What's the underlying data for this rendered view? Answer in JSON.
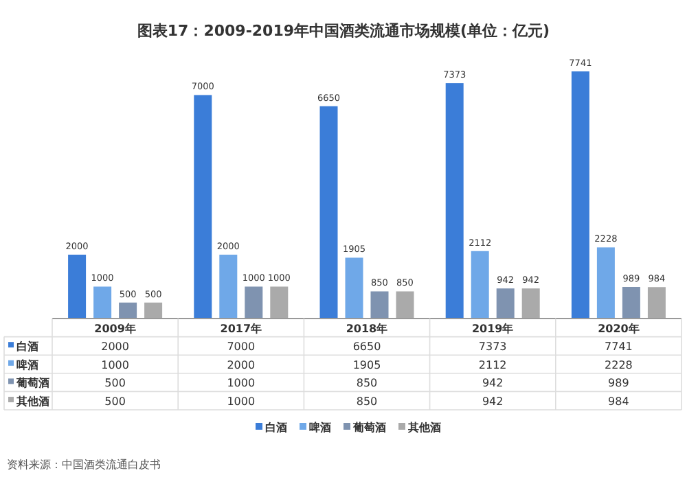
{
  "chart_data": [
    {
      "type": "bar",
      "title": "图表17：2009-2019年中国酒类流通市场规模(单位：亿元)",
      "categories": [
        "2009年",
        "2017年",
        "2018年",
        "2019年",
        "2020年"
      ],
      "series": [
        {
          "name": "白酒",
          "color": "#3b7dd8",
          "values": [
            2000,
            7000,
            6650,
            7373,
            7741
          ],
          "value_labels": [
            "2000",
            "7000",
            "6650",
            "7373",
            "7741"
          ]
        },
        {
          "name": "啤酒",
          "color": "#6fa8e8",
          "values": [
            1000,
            2000,
            1905,
            2112,
            2228
          ],
          "value_labels": [
            "1000",
            "2000",
            "1905",
            "2112",
            "2228"
          ]
        },
        {
          "name": "葡萄酒",
          "color": "#7f93b0",
          "values": [
            500,
            1000,
            850,
            942,
            989
          ],
          "value_labels": [
            "500",
            "1000",
            "850",
            "942",
            "989"
          ]
        },
        {
          "name": "其他酒",
          "color": "#aaaaaa",
          "values": [
            500,
            1000,
            850,
            942,
            984
          ],
          "value_labels": [
            "500",
            "1000",
            "850",
            "942",
            "984"
          ]
        }
      ],
      "legend": "bottom",
      "annotations": [
        "资料来源：中国酒类流通白皮书"
      ]
    },
    {
      "type": "other",
      "annotations": [
        "2000",
        "7000",
        "6650",
        "7373",
        "7741",
        "1000",
        "2000",
        "1905",
        "2112",
        "2228",
        "500",
        "1000",
        "850",
        "942",
        "989",
        "500",
        "1000",
        "850",
        "942",
        "984"
      ]
    }
  ]
}
